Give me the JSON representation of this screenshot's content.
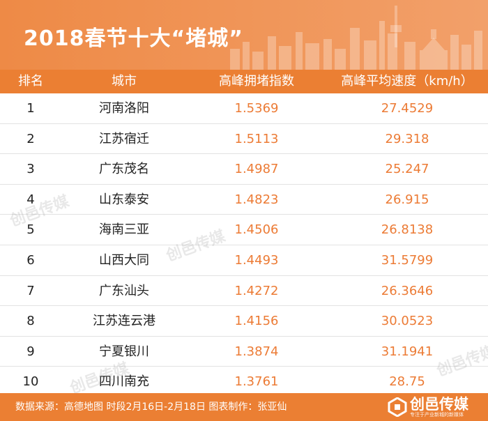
{
  "header": {
    "title": "2018春节十大“堵城”"
  },
  "columns": {
    "rank": "排名",
    "city": "城市",
    "index": "高峰拥堵指数",
    "speed": "高峰平均速度（km/h）"
  },
  "rows": [
    {
      "rank": "1",
      "city": "河南洛阳",
      "index": "1.5369",
      "speed": "27.4529"
    },
    {
      "rank": "2",
      "city": "江苏宿迁",
      "index": "1.5113",
      "speed": "29.318"
    },
    {
      "rank": "3",
      "city": "广东茂名",
      "index": "1.4987",
      "speed": "25.247"
    },
    {
      "rank": "4",
      "city": "山东泰安",
      "index": "1.4823",
      "speed": "26.915"
    },
    {
      "rank": "5",
      "city": "海南三亚",
      "index": "1.4506",
      "speed": "26.8138"
    },
    {
      "rank": "6",
      "city": "山西大同",
      "index": "1.4493",
      "speed": "31.5799"
    },
    {
      "rank": "7",
      "city": "广东汕头",
      "index": "1.4272",
      "speed": "26.3646"
    },
    {
      "rank": "8",
      "city": "江苏连云港",
      "index": "1.4156",
      "speed": "30.0523"
    },
    {
      "rank": "9",
      "city": "宁夏银川",
      "index": "1.3874",
      "speed": "31.1941"
    },
    {
      "rank": "10",
      "city": "四川南充",
      "index": "1.3761",
      "speed": "28.75"
    }
  ],
  "watermark": {
    "text": "创邑传媒"
  },
  "footer": {
    "source": "数据来源：高德地图  时段2月16日-2月18日  图表制作：张亚仙",
    "brand": "创邑传媒",
    "tagline": "专注于产业新城的新媒体"
  },
  "chart_data": {
    "type": "table",
    "title": "2018春节十大“堵城”",
    "columns": [
      "排名",
      "城市",
      "高峰拥堵指数",
      "高峰平均速度（km/h）"
    ],
    "rows": [
      [
        1,
        "河南洛阳",
        1.5369,
        27.4529
      ],
      [
        2,
        "江苏宿迁",
        1.5113,
        29.318
      ],
      [
        3,
        "广东茂名",
        1.4987,
        25.247
      ],
      [
        4,
        "山东泰安",
        1.4823,
        26.915
      ],
      [
        5,
        "海南三亚",
        1.4506,
        26.8138
      ],
      [
        6,
        "山西大同",
        1.4493,
        31.5799
      ],
      [
        7,
        "广东汕头",
        1.4272,
        26.3646
      ],
      [
        8,
        "江苏连云港",
        1.4156,
        30.0523
      ],
      [
        9,
        "宁夏银川",
        1.3874,
        31.1941
      ],
      [
        10,
        "四川南充",
        1.3761,
        28.75
      ]
    ]
  },
  "colors": {
    "accent": "#eb7f33",
    "value_text": "#ec7b35",
    "row_text": "#222222"
  }
}
